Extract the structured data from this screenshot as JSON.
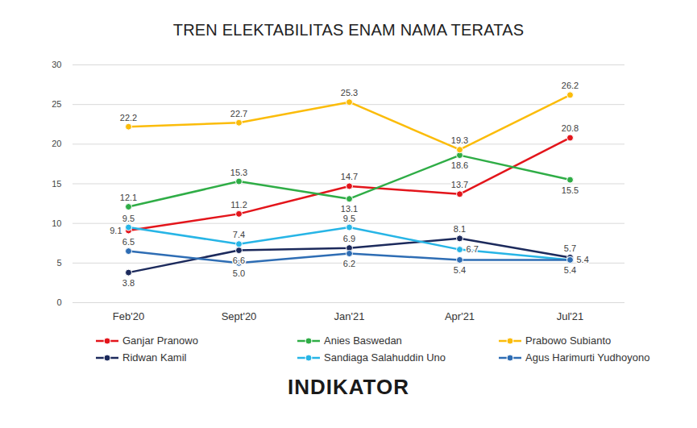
{
  "chart_data": {
    "type": "line",
    "title": "TREN ELEKTABILITAS ENAM NAMA TERATAS",
    "categories": [
      "Feb'20",
      "Sept'20",
      "Jan'21",
      "Apr'21",
      "Jul'21"
    ],
    "series": [
      {
        "name": "Ganjar Pranowo",
        "color": "#e3151b",
        "values": [
          9.1,
          11.2,
          14.7,
          13.7,
          20.8
        ]
      },
      {
        "name": "Anies Baswedan",
        "color": "#2fad46",
        "values": [
          12.1,
          15.3,
          13.1,
          18.6,
          15.5
        ]
      },
      {
        "name": "Prabowo Subianto",
        "color": "#fbbc0a",
        "values": [
          22.2,
          22.7,
          25.3,
          19.3,
          26.2
        ]
      },
      {
        "name": "Ridwan Kamil",
        "color": "#1c2a5c",
        "values": [
          3.8,
          6.6,
          6.9,
          8.1,
          5.7
        ]
      },
      {
        "name": "Sandiaga Salahuddin Uno",
        "color": "#27b5e6",
        "values": [
          9.5,
          7.4,
          9.5,
          6.7,
          5.4
        ]
      },
      {
        "name": "Agus Harimurti Yudhoyono",
        "color": "#2e6db4",
        "values": [
          6.5,
          5.0,
          6.2,
          5.4,
          5.4
        ],
        "value_labels": [
          "6.5",
          "5.0",
          "6.2",
          "5.4",
          "5.4"
        ]
      }
    ],
    "ylim": [
      0,
      30
    ],
    "yticks": [
      0,
      5,
      10,
      15,
      20,
      25,
      30
    ],
    "grid": true,
    "data_labels": true,
    "legend": "bottom",
    "marker": "circle",
    "caption": "INDIKATOR"
  }
}
